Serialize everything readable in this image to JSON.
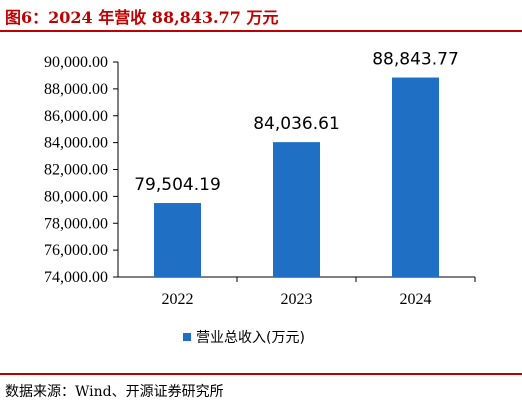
{
  "figure": {
    "title": "图6：2024 年营收 88,843.77 万元",
    "source": "数据来源：Wind、开源证券研究所"
  },
  "colors": {
    "accent": "#c00000",
    "bar": "#1f6fc5"
  },
  "chart_data": {
    "type": "bar",
    "title": "",
    "xlabel": "",
    "ylabel": "",
    "categories": [
      "2022",
      "2023",
      "2024"
    ],
    "series": [
      {
        "name": "营业总收入(万元)",
        "values": [
          79504.19,
          84036.61,
          88843.77
        ],
        "data_labels": [
          "79,504.19",
          "84,036.61",
          "88,843.77"
        ]
      }
    ],
    "ylim": [
      74000,
      90000
    ],
    "yticks": [
      74000,
      76000,
      78000,
      80000,
      82000,
      84000,
      86000,
      88000,
      90000
    ],
    "ytick_labels": [
      "74,000.00",
      "76,000.00",
      "78,000.00",
      "80,000.00",
      "82,000.00",
      "84,000.00",
      "86,000.00",
      "88,000.00",
      "90,000.00"
    ],
    "grid": false,
    "legend": "bottom"
  }
}
